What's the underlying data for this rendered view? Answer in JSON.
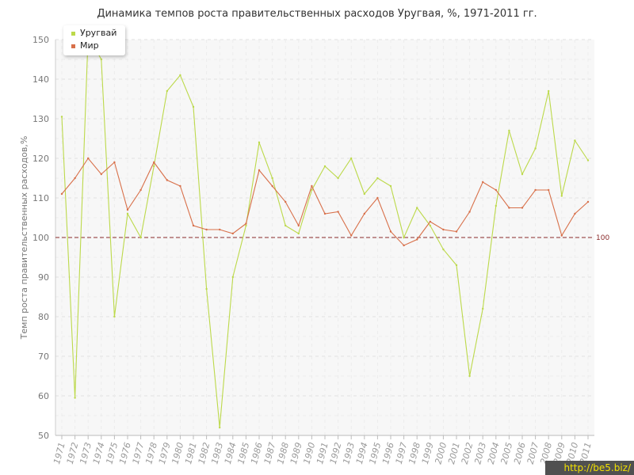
{
  "chart_data": {
    "type": "line",
    "title": "Динамика темпов роста правительственных расходов Уругвая, %, 1971-2011 гг.",
    "xlabel": "",
    "ylabel": "Темп роста правительственных расходов,%",
    "ylim": [
      50,
      150
    ],
    "yticks": [
      "50",
      "60",
      "70",
      "80",
      "90",
      "100",
      "110",
      "120",
      "130",
      "140",
      "150"
    ],
    "categories": [
      "1971",
      "1972",
      "1973",
      "1974",
      "1975",
      "1976",
      "1977",
      "1978",
      "1979",
      "1980",
      "1981",
      "1982",
      "1983",
      "1984",
      "1985",
      "1986",
      "1987",
      "1988",
      "1989",
      "1990",
      "1991",
      "1992",
      "1993",
      "1994",
      "1995",
      "1996",
      "1997",
      "1998",
      "1999",
      "2000",
      "2001",
      "2002",
      "2003",
      "2004",
      "2005",
      "2006",
      "2007",
      "2008",
      "2009",
      "2010",
      "2011"
    ],
    "series": [
      {
        "name": "Уругвай",
        "color": "#bcd94a",
        "values": [
          130.5,
          59.5,
          151,
          145,
          80,
          106,
          100,
          118,
          137,
          141,
          133,
          87,
          52,
          90,
          103,
          124,
          115,
          103,
          101,
          112,
          118,
          115,
          120,
          111,
          115,
          113,
          100,
          107.5,
          103,
          97,
          93,
          65,
          82,
          108,
          127,
          116,
          122.5,
          137,
          110.5,
          124.5,
          119.5
        ]
      },
      {
        "name": "Мир",
        "color": "#d8704a",
        "values": [
          111,
          115,
          120,
          116,
          119,
          107,
          112,
          119,
          114.5,
          113,
          103,
          102,
          102,
          101,
          103.5,
          117,
          113,
          109,
          103,
          113,
          106,
          106.5,
          100.5,
          106,
          110,
          101.5,
          98,
          99.5,
          104,
          102,
          101.5,
          106.5,
          114,
          112,
          107.5,
          107.5,
          112,
          112,
          100.5,
          106,
          109
        ]
      }
    ],
    "reference_line": {
      "value": 100,
      "label": "100",
      "color": "#8a2b2b"
    },
    "legend_position": "top-left",
    "grid": true
  },
  "watermark": "http://be5.biz/"
}
